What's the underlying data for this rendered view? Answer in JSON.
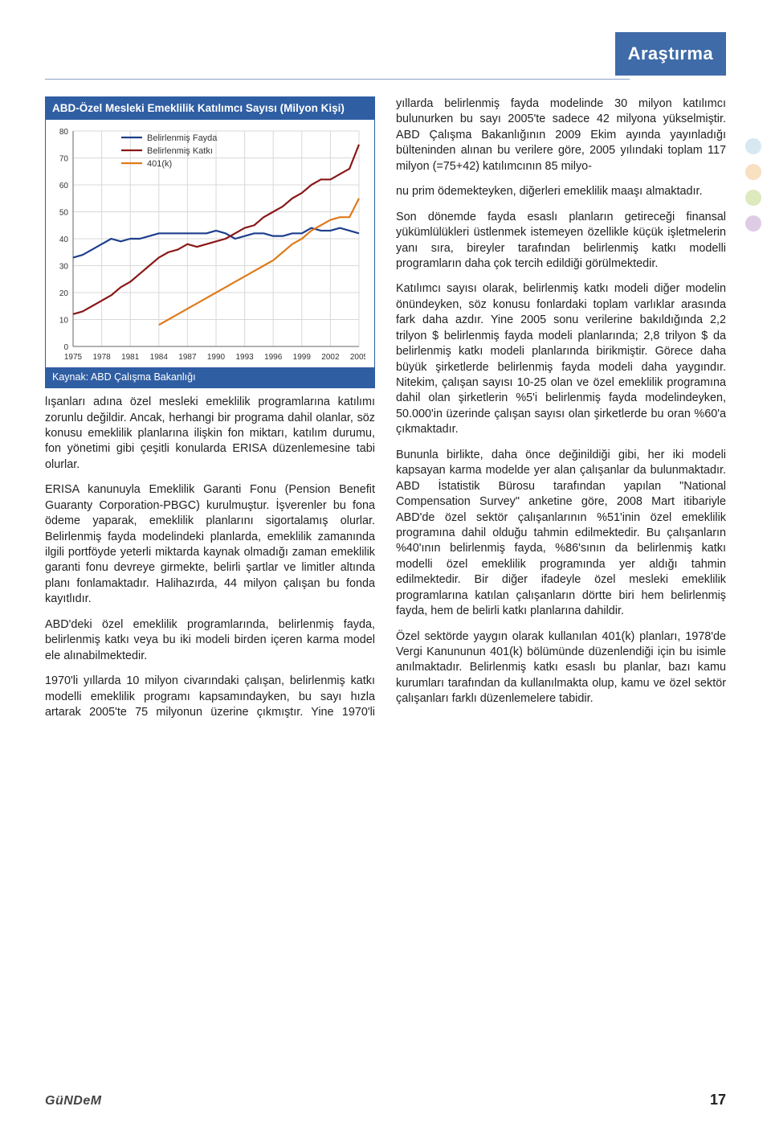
{
  "header": {
    "tag": "Araştırma"
  },
  "chart": {
    "title": "ABD-Özel Mesleki Emeklilik Katılımcı Sayısı (Milyon Kişi)",
    "source": "Kaynak: ABD Çalışma Bakanlığı",
    "type": "line",
    "x_labels": [
      "1975",
      "1978",
      "1981",
      "1984",
      "1987",
      "1990",
      "1993",
      "1996",
      "1999",
      "2002",
      "2005"
    ],
    "ylim": [
      0,
      80
    ],
    "ytick_step": 10,
    "background_color": "#ffffff",
    "grid_color": "#d8d8d8",
    "axis_color": "#666666",
    "label_fontsize": 10,
    "line_width": 2.2,
    "legend": {
      "position": "upper-left-inside",
      "items": [
        {
          "label": "Belirlenmiş Fayda",
          "color": "#1d3f8c"
        },
        {
          "label": "Belirlenmiş Katkı",
          "color": "#8a1717"
        },
        {
          "label": "401(k)",
          "color": "#e07a1a"
        }
      ]
    },
    "series": [
      {
        "name": "Belirlenmiş Fayda",
        "color": "#1d3f8c",
        "y": [
          33,
          34,
          36,
          38,
          40,
          39,
          40,
          40,
          41,
          42,
          42,
          42,
          42,
          42,
          42,
          43,
          42,
          40,
          41,
          42,
          42,
          41,
          41,
          42,
          42,
          44,
          43,
          43,
          44,
          43,
          42
        ]
      },
      {
        "name": "Belirlenmiş Katkı",
        "color": "#8a1717",
        "y": [
          12,
          13,
          15,
          17,
          19,
          22,
          24,
          27,
          30,
          33,
          35,
          36,
          38,
          37,
          38,
          39,
          40,
          42,
          44,
          45,
          48,
          50,
          52,
          55,
          57,
          60,
          62,
          62,
          64,
          66,
          75
        ]
      },
      {
        "name": "401(k)",
        "color": "#e07a1a",
        "start_index": 9,
        "y": [
          8,
          10,
          12,
          14,
          16,
          18,
          20,
          22,
          24,
          26,
          28,
          30,
          32,
          35,
          38,
          40,
          43,
          45,
          47,
          48,
          48,
          55
        ]
      }
    ]
  },
  "body_left": {
    "p1": "lışanları adına özel mesleki emeklilik programlarına katılımı zorunlu değildir. Ancak, herhangi bir programa dahil olanlar, söz konusu emeklilik planlarına ilişkin fon miktarı, katılım durumu, fon yönetimi gibi çeşitli konularda ERISA düzenlemesine tabi olurlar.",
    "p2": "ERISA kanunuyla Emeklilik Garanti Fonu (Pension Benefit Guaranty Corporation-PBGC) kurulmuştur. İşverenler bu fona ödeme yaparak, emeklilik planlarını sigortalamış olurlar. Belirlenmiş fayda modelindeki planlarda, emeklilik zamanında ilgili portföyde yeterli miktarda kaynak olmadığı zaman emeklilik garanti fonu devreye girmekte, belirli şartlar ve limitler altında planı fonlamaktadır. Halihazırda, 44 milyon çalışan bu fonda kayıtlıdır.",
    "p3": "ABD'deki özel emeklilik programlarında, belirlenmiş fayda, belirlenmiş katkı veya bu iki modeli birden içeren karma model ele alınabilmektedir.",
    "p4": "1970'li yıllarda 10 milyon civarındaki çalışan, belirlenmiş katkı modelli emeklilik programı kapsamındayken, bu sayı hızla artarak 2005'te 75 milyonun üzerine çıkmıştır. Yine 1970'li yıllarda belirlenmiş fayda modelinde 30 milyon katılımcı bulunurken bu sayı 2005'te sadece 42 milyona yükselmiştir. ABD Çalışma Bakanlığının 2009 Ekim ayında yayınladığı bülteninden alınan bu verilere göre, 2005 yılındaki toplam 117 milyon (=75+42) katılımcının 85 milyo-"
  },
  "body_right": {
    "p1": "nu prim ödemekteyken, diğerleri emeklilik maaşı almaktadır.",
    "p2": "Son dönemde fayda esaslı planların getireceği finansal yükümlülükleri üstlenmek istemeyen özellikle küçük işletmelerin yanı sıra, bireyler tarafından belirlenmiş katkı modelli programların daha çok tercih edildiği görülmektedir.",
    "p3": "Katılımcı sayısı olarak, belirlenmiş katkı modeli diğer modelin önündeyken, söz konusu fonlardaki toplam varlıklar arasında fark daha azdır. Yine 2005 sonu verilerine bakıldığında 2,2 trilyon $ belirlenmiş fayda modeli planlarında; 2,8 trilyon $ da belirlenmiş katkı modeli planlarında birikmiştir. Görece daha büyük şirketlerde belirlenmiş fayda modeli daha yaygındır. Nitekim, çalışan sayısı 10-25 olan ve özel emeklilik programına dahil olan şirketlerin %5'i belirlenmiş fayda modelindeyken, 50.000'in üzerinde çalışan sayısı olan şirketlerde bu oran %60'a çıkmaktadır.",
    "p4": "Bununla birlikte, daha önce değinildiği gibi, her iki modeli kapsayan karma modelde yer alan çalışanlar da bulunmaktadır. ABD İstatistik Bürosu tarafından yapılan \"National Compensation Survey\" anketine göre, 2008 Mart itibariyle ABD'de özel sektör çalışanlarının %51'inin özel emeklilik programına dahil olduğu tahmin edilmektedir. Bu çalışanların %40'ının belirlenmiş fayda, %86'sının da belirlenmiş katkı modelli özel emeklilik programında yer aldığı tahmin edilmektedir. Bir diğer ifadeyle özel mesleki emeklilik programlarına katılan çalışanların dörtte biri hem belirlenmiş fayda, hem de belirli katkı planlarına dahildir.",
    "p5": "Özel sektörde yaygın olarak kullanılan 401(k) planları, 1978'de Vergi Kanununun 401(k) bölümünde düzenlendiği için bu isimle anılmaktadır. Belirlenmiş katkı esaslı bu planlar, bazı kamu kurumları tarafından da kullanılmakta olup, kamu ve özel sektör çalışanları farklı düzenlemelere tabidir."
  },
  "footer": {
    "publication": "GüNDeM",
    "page": "17"
  }
}
